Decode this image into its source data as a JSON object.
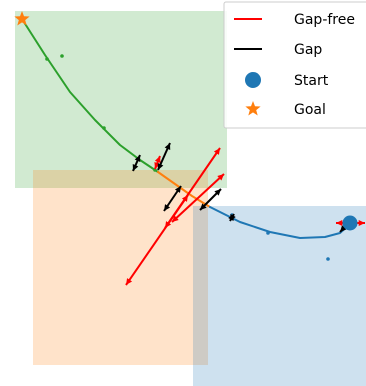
{
  "chart_data": {
    "type": "scatter",
    "title": "",
    "xlabel": "",
    "ylabel": "",
    "axes_visible": false,
    "grid": false,
    "xlim": [
      0,
      366
    ],
    "ylim": [
      -386,
      0
    ],
    "legend": {
      "placement": "top-right",
      "entries": [
        {
          "label": "Gap-free",
          "marker": "line",
          "color": "#ff0000"
        },
        {
          "label": "Gap",
          "marker": "line",
          "color": "#000000"
        },
        {
          "label": "Start",
          "marker": "circle",
          "color": "#1f77b4"
        },
        {
          "label": "Goal",
          "marker": "star",
          "color": "#ff7f0e"
        }
      ]
    },
    "regions": [
      {
        "color": "#2ca02c",
        "opacity": 0.22,
        "x": [
          15,
          227
        ],
        "y": [
          -188,
          -11
        ]
      },
      {
        "color": "#ff7f0e",
        "opacity": 0.22,
        "x": [
          33,
          208
        ],
        "y": [
          -365,
          -170
        ]
      },
      {
        "color": "#1f77b4",
        "opacity": 0.22,
        "x": [
          193,
          366
        ],
        "y": [
          -386,
          -206
        ]
      }
    ],
    "series": [
      {
        "role": "trajectory",
        "color": "#2ca02c",
        "x": [
          22,
          45,
          70,
          95,
          120,
          140,
          158
        ],
        "y": [
          -19,
          -55,
          -92,
          -120,
          -145,
          -160,
          -172
        ]
      },
      {
        "role": "trajectory",
        "color": "#ff7f0e",
        "x": [
          158,
          175,
          192,
          210
        ],
        "y": [
          -172,
          -184,
          -196,
          -207
        ]
      },
      {
        "role": "trajectory",
        "color": "#1f77b4",
        "x": [
          210,
          240,
          270,
          300,
          325,
          340,
          350
        ],
        "y": [
          -207,
          -222,
          -232,
          -238,
          -237,
          -233,
          -224
        ]
      },
      {
        "role": "waypoints",
        "color": "#2ca02c",
        "x": [
          47,
          62,
          104,
          155
        ],
        "y": [
          -59,
          -56,
          -128,
          -170
        ]
      },
      {
        "role": "waypoints",
        "color": "#1f77b4",
        "x": [
          268,
          328,
          232
        ],
        "y": [
          -233,
          -259,
          -215
        ]
      },
      {
        "role": "start",
        "name": "Start",
        "color": "#1f77b4",
        "x": [
          350
        ],
        "y": [
          -223
        ]
      },
      {
        "role": "goal",
        "name": "Goal",
        "color": "#ff7f0e",
        "x": [
          22
        ],
        "y": [
          -19
        ]
      }
    ],
    "vectors": [
      {
        "kind": "gap-free",
        "color": "#ff0000",
        "from": [
          126,
          -285
        ],
        "to": [
          188,
          -195
        ]
      },
      {
        "kind": "gap-free",
        "color": "#ff0000",
        "from": [
          165,
          -228
        ],
        "to": [
          220,
          -148
        ]
      },
      {
        "kind": "gap-free",
        "color": "#ff0000",
        "from": [
          172,
          -222
        ],
        "to": [
          224,
          -174
        ]
      },
      {
        "kind": "gap-free",
        "color": "#ff0000",
        "from": [
          155,
          -169
        ],
        "to": [
          160,
          -156
        ]
      },
      {
        "kind": "gap-free",
        "color": "#ff0000",
        "from": [
          336,
          -223
        ],
        "to": [
          365,
          -223
        ]
      },
      {
        "kind": "gap",
        "color": "#000000",
        "from": [
          133,
          -171
        ],
        "to": [
          140,
          -155
        ]
      },
      {
        "kind": "gap",
        "color": "#000000",
        "from": [
          158,
          -170
        ],
        "to": [
          170,
          -143
        ]
      },
      {
        "kind": "gap",
        "color": "#000000",
        "from": [
          164,
          -211
        ],
        "to": [
          181,
          -186
        ]
      },
      {
        "kind": "gap",
        "color": "#000000",
        "from": [
          200,
          -210
        ],
        "to": [
          221,
          -189
        ]
      },
      {
        "kind": "gap",
        "color": "#000000",
        "from": [
          230,
          -221
        ],
        "to": [
          234,
          -214
        ]
      },
      {
        "kind": "gap",
        "color": "#000000",
        "from": [
          340,
          -232
        ],
        "to": [
          352,
          -219
        ]
      }
    ]
  }
}
